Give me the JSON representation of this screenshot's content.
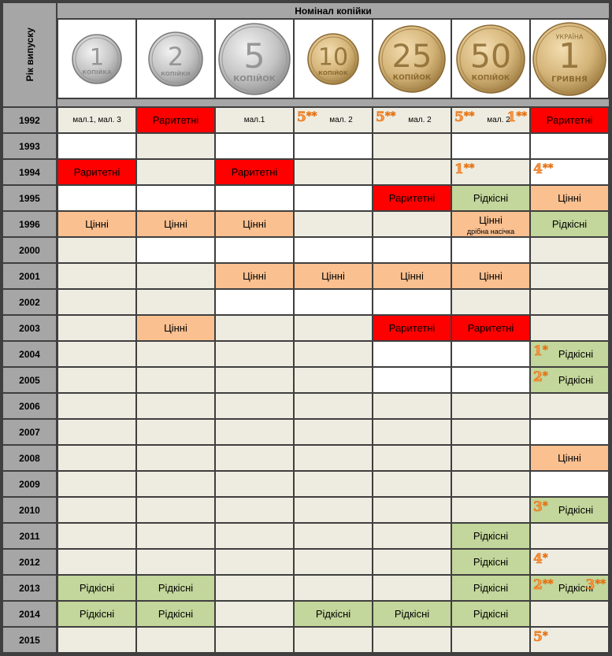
{
  "header": {
    "year_label": "Рік випуску",
    "denomination_label": "Номінал копійки"
  },
  "coins": [
    {
      "name": "coin-1-kopiyka",
      "numeral": "1",
      "caption": "КОПІЙКА",
      "metal": "silver"
    },
    {
      "name": "coin-2-kopiyky",
      "numeral": "2",
      "caption": "КОПІЙКИ",
      "metal": "silver"
    },
    {
      "name": "coin-5-kopiyok",
      "numeral": "5",
      "caption": "КОПІЙОК",
      "metal": "silver"
    },
    {
      "name": "coin-10-kopiyok",
      "numeral": "10",
      "caption": "КОПІЙОК",
      "metal": "gold"
    },
    {
      "name": "coin-25-kopiyok",
      "numeral": "25",
      "caption": "КОПІЙОК",
      "metal": "gold"
    },
    {
      "name": "coin-50-kopiyok",
      "numeral": "50",
      "caption": "КОПІЙОК",
      "metal": "gold"
    },
    {
      "name": "coin-1-hryvnia",
      "numeral": "1",
      "caption": "ГРИВНЯ",
      "top_caption": "УКРАЇНА",
      "metal": "gold"
    }
  ],
  "legend_colors": {
    "plain": "#eeece1",
    "white": "#ffffff",
    "rare": "#ff0000",
    "valuable": "#fac090",
    "scarce": "#c3d69b",
    "year_bg": "#a6a6a6",
    "footnote": "#f79646"
  },
  "rows": [
    {
      "year": "1992",
      "cells": [
        {
          "bg": "plain",
          "text": "мал.1, мал. 3",
          "small": true
        },
        {
          "bg": "rare",
          "text": "Раритетні"
        },
        {
          "bg": "plain",
          "text": "мал.1",
          "small": true
        },
        {
          "bg": "plain",
          "text": "мал. 2",
          "small": true,
          "fn": [
            {
              "n": "5",
              "s": "**",
              "pos": "left"
            }
          ]
        },
        {
          "bg": "plain",
          "text": "мал. 2",
          "small": true,
          "fn": [
            {
              "n": "5",
              "s": "**",
              "pos": "left"
            }
          ]
        },
        {
          "bg": "plain",
          "text": "мал. 2",
          "small": true,
          "fn": [
            {
              "n": "5",
              "s": "**",
              "pos": "left"
            },
            {
              "n": "1",
              "s": "**",
              "pos": "right"
            }
          ]
        },
        {
          "bg": "rare",
          "text": "Раритетні"
        }
      ]
    },
    {
      "year": "1993",
      "cells": [
        {
          "bg": "white",
          "text": ""
        },
        {
          "bg": "plain",
          "text": ""
        },
        {
          "bg": "white",
          "text": ""
        },
        {
          "bg": "white",
          "text": ""
        },
        {
          "bg": "plain",
          "text": ""
        },
        {
          "bg": "white",
          "text": ""
        },
        {
          "bg": "white",
          "text": ""
        }
      ]
    },
    {
      "year": "1994",
      "cells": [
        {
          "bg": "rare",
          "text": "Раритетні"
        },
        {
          "bg": "plain",
          "text": ""
        },
        {
          "bg": "rare",
          "text": "Раритетні"
        },
        {
          "bg": "plain",
          "text": ""
        },
        {
          "bg": "plain",
          "text": ""
        },
        {
          "bg": "plain",
          "text": "",
          "fn": [
            {
              "n": "1",
              "s": "**",
              "pos": "left"
            }
          ]
        },
        {
          "bg": "white",
          "text": "",
          "fn": [
            {
              "n": "4",
              "s": "**",
              "pos": "left"
            }
          ]
        }
      ]
    },
    {
      "year": "1995",
      "cells": [
        {
          "bg": "white",
          "text": ""
        },
        {
          "bg": "white",
          "text": ""
        },
        {
          "bg": "white",
          "text": ""
        },
        {
          "bg": "white",
          "text": ""
        },
        {
          "bg": "rare",
          "text": "Раритетні"
        },
        {
          "bg": "scarce",
          "text": "Рідкісні"
        },
        {
          "bg": "valuable",
          "text": "Цінні"
        }
      ]
    },
    {
      "year": "1996",
      "cells": [
        {
          "bg": "valuable",
          "text": "Цінні"
        },
        {
          "bg": "valuable",
          "text": "Цінні"
        },
        {
          "bg": "valuable",
          "text": "Цінні"
        },
        {
          "bg": "plain",
          "text": ""
        },
        {
          "bg": "plain",
          "text": ""
        },
        {
          "bg": "valuable",
          "text": "Цінні",
          "note": "дрібна насічка"
        },
        {
          "bg": "scarce",
          "text": "Рідкісні"
        }
      ]
    },
    {
      "year": "2000",
      "cells": [
        {
          "bg": "plain",
          "text": ""
        },
        {
          "bg": "white",
          "text": ""
        },
        {
          "bg": "white",
          "text": ""
        },
        {
          "bg": "white",
          "text": ""
        },
        {
          "bg": "white",
          "text": ""
        },
        {
          "bg": "white",
          "text": ""
        },
        {
          "bg": "plain",
          "text": ""
        }
      ]
    },
    {
      "year": "2001",
      "cells": [
        {
          "bg": "plain",
          "text": ""
        },
        {
          "bg": "plain",
          "text": ""
        },
        {
          "bg": "valuable",
          "text": "Цінні"
        },
        {
          "bg": "valuable",
          "text": "Цінні"
        },
        {
          "bg": "valuable",
          "text": "Цінні"
        },
        {
          "bg": "valuable",
          "text": "Цінні"
        },
        {
          "bg": "plain",
          "text": ""
        }
      ]
    },
    {
      "year": "2002",
      "cells": [
        {
          "bg": "plain",
          "text": ""
        },
        {
          "bg": "plain",
          "text": ""
        },
        {
          "bg": "white",
          "text": ""
        },
        {
          "bg": "white",
          "text": ""
        },
        {
          "bg": "white",
          "text": ""
        },
        {
          "bg": "plain",
          "text": ""
        },
        {
          "bg": "plain",
          "text": ""
        }
      ]
    },
    {
      "year": "2003",
      "cells": [
        {
          "bg": "plain",
          "text": ""
        },
        {
          "bg": "valuable",
          "text": "Цінні"
        },
        {
          "bg": "plain",
          "text": ""
        },
        {
          "bg": "plain",
          "text": ""
        },
        {
          "bg": "rare",
          "text": "Раритетні"
        },
        {
          "bg": "rare",
          "text": "Раритетні"
        },
        {
          "bg": "plain",
          "text": ""
        }
      ]
    },
    {
      "year": "2004",
      "cells": [
        {
          "bg": "plain",
          "text": ""
        },
        {
          "bg": "plain",
          "text": ""
        },
        {
          "bg": "plain",
          "text": ""
        },
        {
          "bg": "plain",
          "text": ""
        },
        {
          "bg": "white",
          "text": ""
        },
        {
          "bg": "white",
          "text": ""
        },
        {
          "bg": "scarce",
          "text": "Рідкісні",
          "fn": [
            {
              "n": "1",
              "s": "*",
              "pos": "left"
            }
          ]
        }
      ]
    },
    {
      "year": "2005",
      "cells": [
        {
          "bg": "plain",
          "text": ""
        },
        {
          "bg": "plain",
          "text": ""
        },
        {
          "bg": "plain",
          "text": ""
        },
        {
          "bg": "plain",
          "text": ""
        },
        {
          "bg": "white",
          "text": ""
        },
        {
          "bg": "white",
          "text": ""
        },
        {
          "bg": "scarce",
          "text": "Рідкісні",
          "fn": [
            {
              "n": "2",
              "s": "*",
              "pos": "left"
            }
          ]
        }
      ]
    },
    {
      "year": "2006",
      "cells": [
        {
          "bg": "plain",
          "text": ""
        },
        {
          "bg": "plain",
          "text": ""
        },
        {
          "bg": "plain",
          "text": ""
        },
        {
          "bg": "plain",
          "text": ""
        },
        {
          "bg": "plain",
          "text": ""
        },
        {
          "bg": "plain",
          "text": ""
        },
        {
          "bg": "plain",
          "text": ""
        }
      ]
    },
    {
      "year": "2007",
      "cells": [
        {
          "bg": "plain",
          "text": ""
        },
        {
          "bg": "plain",
          "text": ""
        },
        {
          "bg": "plain",
          "text": ""
        },
        {
          "bg": "plain",
          "text": ""
        },
        {
          "bg": "plain",
          "text": ""
        },
        {
          "bg": "plain",
          "text": ""
        },
        {
          "bg": "white",
          "text": ""
        }
      ]
    },
    {
      "year": "2008",
      "cells": [
        {
          "bg": "plain",
          "text": ""
        },
        {
          "bg": "plain",
          "text": ""
        },
        {
          "bg": "plain",
          "text": ""
        },
        {
          "bg": "plain",
          "text": ""
        },
        {
          "bg": "plain",
          "text": ""
        },
        {
          "bg": "plain",
          "text": ""
        },
        {
          "bg": "valuable",
          "text": "Цінні"
        }
      ]
    },
    {
      "year": "2009",
      "cells": [
        {
          "bg": "plain",
          "text": ""
        },
        {
          "bg": "plain",
          "text": ""
        },
        {
          "bg": "plain",
          "text": ""
        },
        {
          "bg": "plain",
          "text": ""
        },
        {
          "bg": "plain",
          "text": ""
        },
        {
          "bg": "plain",
          "text": ""
        },
        {
          "bg": "white",
          "text": ""
        }
      ]
    },
    {
      "year": "2010",
      "cells": [
        {
          "bg": "plain",
          "text": ""
        },
        {
          "bg": "plain",
          "text": ""
        },
        {
          "bg": "plain",
          "text": ""
        },
        {
          "bg": "plain",
          "text": ""
        },
        {
          "bg": "plain",
          "text": ""
        },
        {
          "bg": "plain",
          "text": ""
        },
        {
          "bg": "scarce",
          "text": "Рідкісні",
          "fn": [
            {
              "n": "3",
              "s": "*",
              "pos": "left"
            }
          ]
        }
      ]
    },
    {
      "year": "2011",
      "cells": [
        {
          "bg": "plain",
          "text": ""
        },
        {
          "bg": "plain",
          "text": ""
        },
        {
          "bg": "plain",
          "text": ""
        },
        {
          "bg": "plain",
          "text": ""
        },
        {
          "bg": "plain",
          "text": ""
        },
        {
          "bg": "scarce",
          "text": "Рідкісні"
        },
        {
          "bg": "plain",
          "text": ""
        }
      ]
    },
    {
      "year": "2012",
      "cells": [
        {
          "bg": "plain",
          "text": ""
        },
        {
          "bg": "plain",
          "text": ""
        },
        {
          "bg": "plain",
          "text": ""
        },
        {
          "bg": "plain",
          "text": ""
        },
        {
          "bg": "plain",
          "text": ""
        },
        {
          "bg": "scarce",
          "text": "Рідкісні"
        },
        {
          "bg": "plain",
          "text": "",
          "fn": [
            {
              "n": "4",
              "s": "*",
              "pos": "left"
            }
          ]
        }
      ]
    },
    {
      "year": "2013",
      "cells": [
        {
          "bg": "scarce",
          "text": "Рідкісні"
        },
        {
          "bg": "scarce",
          "text": "Рідкісні"
        },
        {
          "bg": "plain",
          "text": ""
        },
        {
          "bg": "plain",
          "text": ""
        },
        {
          "bg": "plain",
          "text": ""
        },
        {
          "bg": "scarce",
          "text": "Рідкісні"
        },
        {
          "bg": "scarce",
          "text": "Рідкісні",
          "fn": [
            {
              "n": "2",
              "s": "**",
              "pos": "left"
            },
            {
              "n": "3",
              "s": "**",
              "pos": "right"
            }
          ]
        }
      ]
    },
    {
      "year": "2014",
      "cells": [
        {
          "bg": "scarce",
          "text": "Рідкісні"
        },
        {
          "bg": "scarce",
          "text": "Рідкісні"
        },
        {
          "bg": "plain",
          "text": ""
        },
        {
          "bg": "scarce",
          "text": "Рідкісні"
        },
        {
          "bg": "scarce",
          "text": "Рідкісні"
        },
        {
          "bg": "scarce",
          "text": "Рідкісні"
        },
        {
          "bg": "plain",
          "text": ""
        }
      ]
    },
    {
      "year": "2015",
      "cells": [
        {
          "bg": "plain",
          "text": ""
        },
        {
          "bg": "plain",
          "text": ""
        },
        {
          "bg": "plain",
          "text": ""
        },
        {
          "bg": "plain",
          "text": ""
        },
        {
          "bg": "plain",
          "text": ""
        },
        {
          "bg": "plain",
          "text": ""
        },
        {
          "bg": "plain",
          "text": "",
          "fn": [
            {
              "n": "5",
              "s": "*",
              "pos": "left"
            }
          ]
        }
      ]
    }
  ]
}
